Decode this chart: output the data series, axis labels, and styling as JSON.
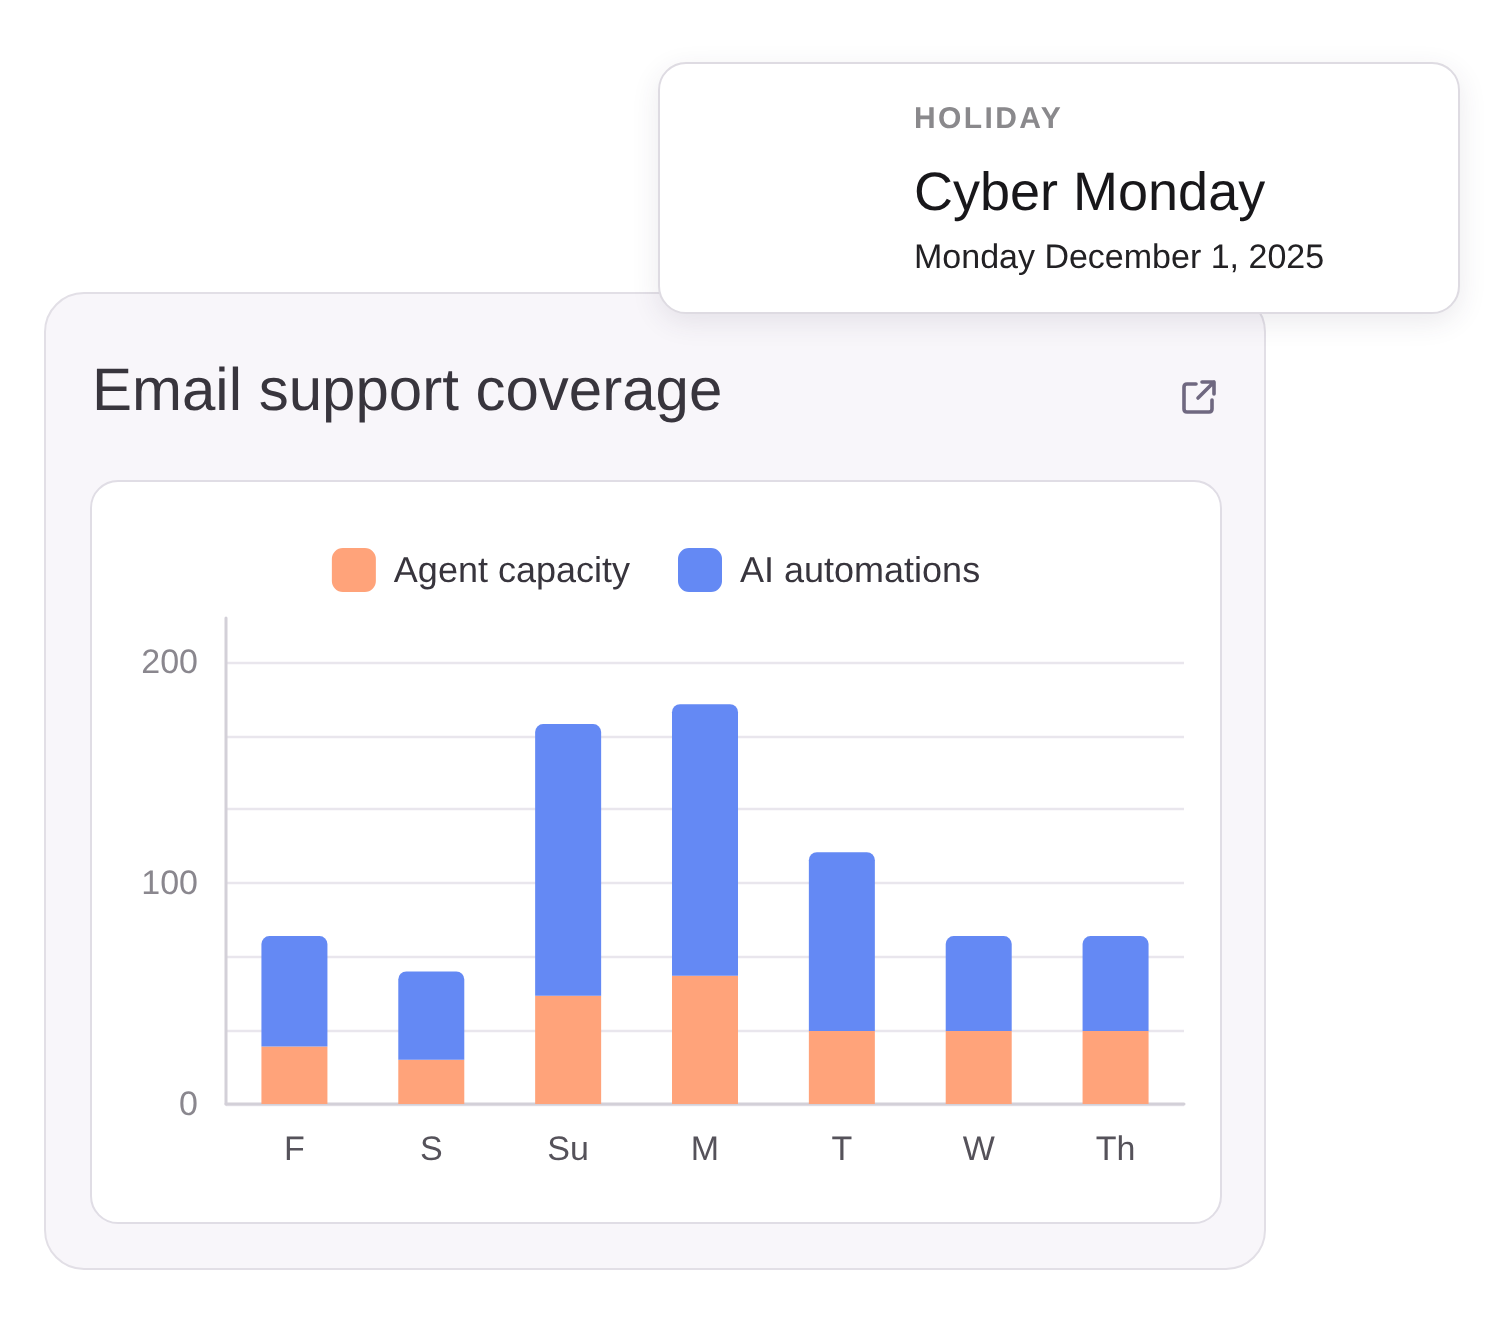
{
  "chart_data": {
    "type": "bar",
    "title": "Email support coverage",
    "annotations": [
      "HOLIDAY",
      "Cyber Monday",
      "Monday December 1, 2025"
    ],
    "categories": [
      "F",
      "S",
      "Su",
      "M",
      "T",
      "W",
      "Th"
    ],
    "series": [
      {
        "name": "Agent capacity",
        "color": "#ffa37a",
        "values": [
          26,
          20,
          49,
          58,
          33,
          33,
          33
        ]
      },
      {
        "name": "AI automations",
        "color": "#6489f4",
        "values": [
          50,
          40,
          123,
          123,
          81,
          43,
          43
        ]
      }
    ],
    "stacked": true,
    "ylim": [
      0,
      220
    ],
    "yticks": [
      0,
      {
        "value": 33.33,
        "label": null
      },
      {
        "value": 66.67,
        "label": null
      },
      100,
      {
        "value": 133.33,
        "label": null
      },
      {
        "value": 166.67,
        "label": null
      },
      200
    ],
    "grid": "y",
    "legend": "top"
  }
}
